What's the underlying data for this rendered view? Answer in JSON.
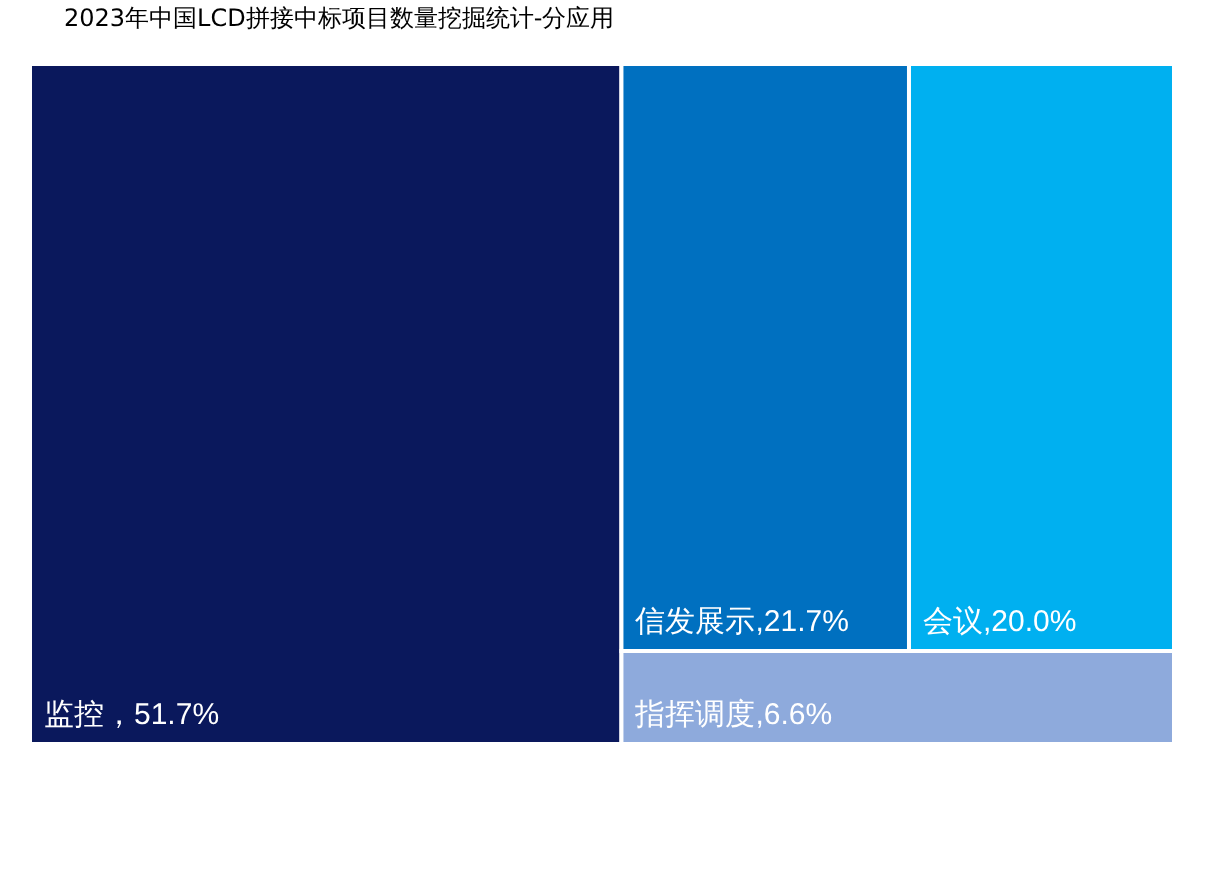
{
  "chart_data": {
    "type": "other",
    "title": "2023年中国LCD拼接中标项目数量挖掘统计-分应用",
    "categories": [
      "监控",
      "信发展示",
      "会议",
      "指挥调度"
    ],
    "values": [
      51.7,
      21.7,
      20.0,
      6.6
    ],
    "colors": [
      "#0a185c",
      "#0070c0",
      "#00b0f0",
      "#8eaadc"
    ],
    "value_labels": [
      "，51.7%",
      ",21.7%",
      ",20.0%",
      ",6.6%"
    ]
  }
}
